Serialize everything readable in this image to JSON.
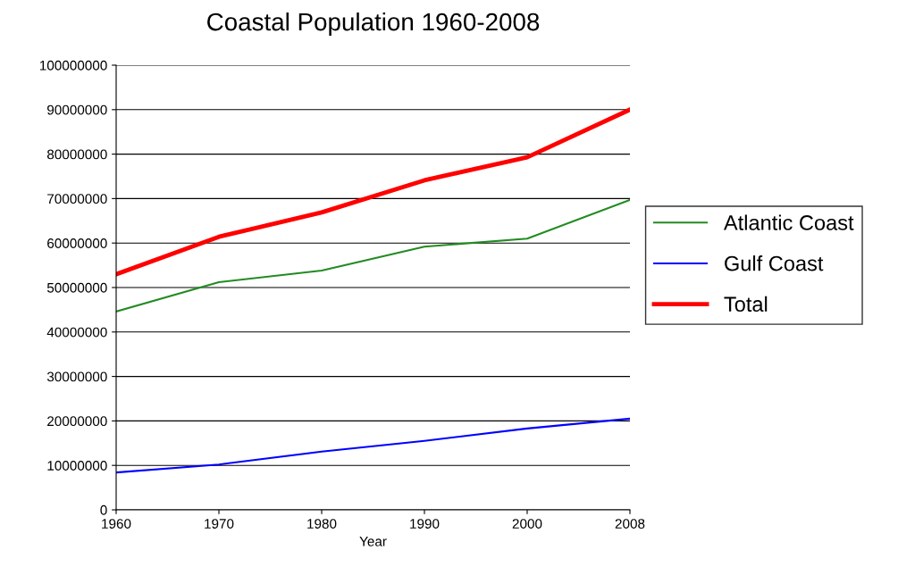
{
  "chart_data": {
    "type": "line",
    "title": "Coastal Population 1960-2008",
    "xlabel": "Year",
    "categories": [
      "1960",
      "1970",
      "1980",
      "1990",
      "2000",
      "2008"
    ],
    "series": [
      {
        "name": "Atlantic Coast",
        "color": "#228b22",
        "values": [
          44600000,
          51200000,
          53800000,
          59200000,
          61000000,
          69700000
        ]
      },
      {
        "name": "Gulf Coast",
        "color": "#0000ff",
        "values": [
          8400000,
          10200000,
          13100000,
          15500000,
          18300000,
          20500000
        ]
      },
      {
        "name": "Total",
        "color": "#ff0000",
        "values": [
          53000000,
          61400000,
          66900000,
          74100000,
          79300000,
          90000000
        ]
      }
    ],
    "ylim": [
      0,
      100000000
    ],
    "yticks": [
      0,
      10000000,
      20000000,
      30000000,
      40000000,
      50000000,
      60000000,
      70000000,
      80000000,
      90000000,
      100000000
    ],
    "grid": "y",
    "legend": "right",
    "marker": "none",
    "line_style": "solid"
  }
}
